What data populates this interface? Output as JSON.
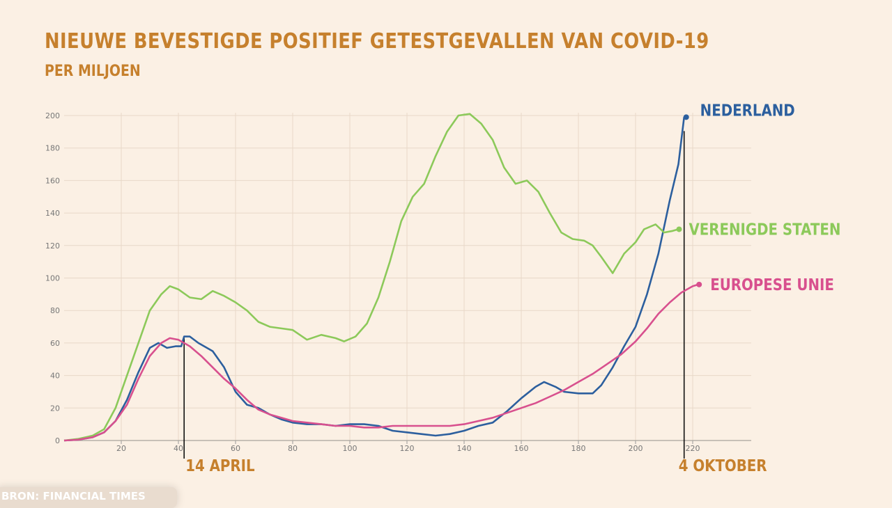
{
  "chart_data": {
    "type": "line",
    "title": "NIEUWE BEVESTIGDE POSITIEF GETESTGEVALLEN VAN COVID-19",
    "subtitle": "PER MILJOEN",
    "source": "BRON: FINANCIAL TIMES",
    "xlim": [
      0,
      240
    ],
    "ylim": [
      0,
      200
    ],
    "x_ticks": [
      20,
      40,
      60,
      80,
      100,
      120,
      140,
      160,
      180,
      200,
      220
    ],
    "y_ticks": [
      0,
      20,
      40,
      60,
      80,
      100,
      120,
      140,
      160,
      180,
      200
    ],
    "grid": true,
    "annotations": [
      {
        "label": "14 APRIL",
        "x": 42
      },
      {
        "label": "4 OKTOBER",
        "x": 217
      }
    ],
    "colors": {
      "background": "#fbf0e4",
      "title": "#c6802d",
      "grid": "#e8d8c8"
    },
    "series": [
      {
        "name": "NEDERLAND",
        "color": "#2c5f9e",
        "points": [
          [
            0,
            0
          ],
          [
            5,
            0.5
          ],
          [
            10,
            2
          ],
          [
            14,
            5
          ],
          [
            18,
            12
          ],
          [
            22,
            25
          ],
          [
            26,
            42
          ],
          [
            30,
            57
          ],
          [
            33,
            60
          ],
          [
            36,
            57
          ],
          [
            39,
            58
          ],
          [
            41,
            58
          ],
          [
            42,
            64
          ],
          [
            44,
            64
          ],
          [
            47,
            60
          ],
          [
            52,
            55
          ],
          [
            56,
            45
          ],
          [
            60,
            30
          ],
          [
            64,
            22
          ],
          [
            68,
            20
          ],
          [
            72,
            16
          ],
          [
            76,
            13
          ],
          [
            80,
            11
          ],
          [
            85,
            10
          ],
          [
            90,
            10
          ],
          [
            95,
            9
          ],
          [
            100,
            10
          ],
          [
            105,
            10
          ],
          [
            110,
            9
          ],
          [
            115,
            6
          ],
          [
            120,
            5
          ],
          [
            125,
            4
          ],
          [
            130,
            3
          ],
          [
            135,
            4
          ],
          [
            140,
            6
          ],
          [
            145,
            9
          ],
          [
            150,
            11
          ],
          [
            155,
            18
          ],
          [
            160,
            26
          ],
          [
            165,
            33
          ],
          [
            168,
            36
          ],
          [
            172,
            33
          ],
          [
            175,
            30
          ],
          [
            180,
            29
          ],
          [
            185,
            29
          ],
          [
            188,
            34
          ],
          [
            192,
            45
          ],
          [
            196,
            58
          ],
          [
            200,
            70
          ],
          [
            204,
            90
          ],
          [
            208,
            115
          ],
          [
            212,
            148
          ],
          [
            215,
            170
          ],
          [
            217,
            199
          ]
        ]
      },
      {
        "name": "VERENIGDE STATEN",
        "color": "#8cc95a",
        "points": [
          [
            0,
            0
          ],
          [
            5,
            1
          ],
          [
            10,
            3
          ],
          [
            14,
            7
          ],
          [
            18,
            20
          ],
          [
            22,
            40
          ],
          [
            26,
            60
          ],
          [
            30,
            80
          ],
          [
            34,
            90
          ],
          [
            37,
            95
          ],
          [
            40,
            93
          ],
          [
            44,
            88
          ],
          [
            48,
            87
          ],
          [
            52,
            92
          ],
          [
            56,
            89
          ],
          [
            60,
            85
          ],
          [
            64,
            80
          ],
          [
            68,
            73
          ],
          [
            72,
            70
          ],
          [
            76,
            69
          ],
          [
            80,
            68
          ],
          [
            85,
            62
          ],
          [
            90,
            65
          ],
          [
            95,
            63
          ],
          [
            98,
            61
          ],
          [
            102,
            64
          ],
          [
            106,
            72
          ],
          [
            110,
            88
          ],
          [
            114,
            110
          ],
          [
            118,
            135
          ],
          [
            122,
            150
          ],
          [
            126,
            158
          ],
          [
            130,
            175
          ],
          [
            134,
            190
          ],
          [
            138,
            200
          ],
          [
            142,
            201
          ],
          [
            146,
            195
          ],
          [
            150,
            185
          ],
          [
            154,
            168
          ],
          [
            158,
            158
          ],
          [
            162,
            160
          ],
          [
            166,
            153
          ],
          [
            170,
            140
          ],
          [
            174,
            128
          ],
          [
            178,
            124
          ],
          [
            182,
            123
          ],
          [
            185,
            120
          ],
          [
            188,
            113
          ],
          [
            192,
            103
          ],
          [
            196,
            115
          ],
          [
            200,
            122
          ],
          [
            203,
            130
          ],
          [
            207,
            133
          ],
          [
            210,
            128
          ],
          [
            213,
            129
          ],
          [
            215,
            130
          ]
        ]
      },
      {
        "name": "EUROPESE UNIE",
        "color": "#d8508e",
        "points": [
          [
            0,
            0
          ],
          [
            5,
            0.5
          ],
          [
            10,
            2
          ],
          [
            14,
            5
          ],
          [
            18,
            12
          ],
          [
            22,
            22
          ],
          [
            26,
            38
          ],
          [
            30,
            52
          ],
          [
            34,
            60
          ],
          [
            37,
            63
          ],
          [
            40,
            62
          ],
          [
            44,
            58
          ],
          [
            48,
            52
          ],
          [
            52,
            45
          ],
          [
            56,
            38
          ],
          [
            60,
            32
          ],
          [
            64,
            25
          ],
          [
            68,
            19
          ],
          [
            72,
            16
          ],
          [
            76,
            14
          ],
          [
            80,
            12
          ],
          [
            85,
            11
          ],
          [
            90,
            10
          ],
          [
            95,
            9
          ],
          [
            100,
            9
          ],
          [
            105,
            8
          ],
          [
            110,
            8
          ],
          [
            115,
            9
          ],
          [
            120,
            9
          ],
          [
            125,
            9
          ],
          [
            130,
            9
          ],
          [
            135,
            9
          ],
          [
            140,
            10
          ],
          [
            145,
            12
          ],
          [
            150,
            14
          ],
          [
            155,
            17
          ],
          [
            160,
            20
          ],
          [
            165,
            23
          ],
          [
            170,
            27
          ],
          [
            175,
            31
          ],
          [
            180,
            36
          ],
          [
            185,
            41
          ],
          [
            190,
            47
          ],
          [
            195,
            53
          ],
          [
            200,
            61
          ],
          [
            204,
            69
          ],
          [
            208,
            78
          ],
          [
            212,
            85
          ],
          [
            216,
            91
          ],
          [
            220,
            95
          ],
          [
            222,
            96
          ]
        ]
      }
    ]
  }
}
